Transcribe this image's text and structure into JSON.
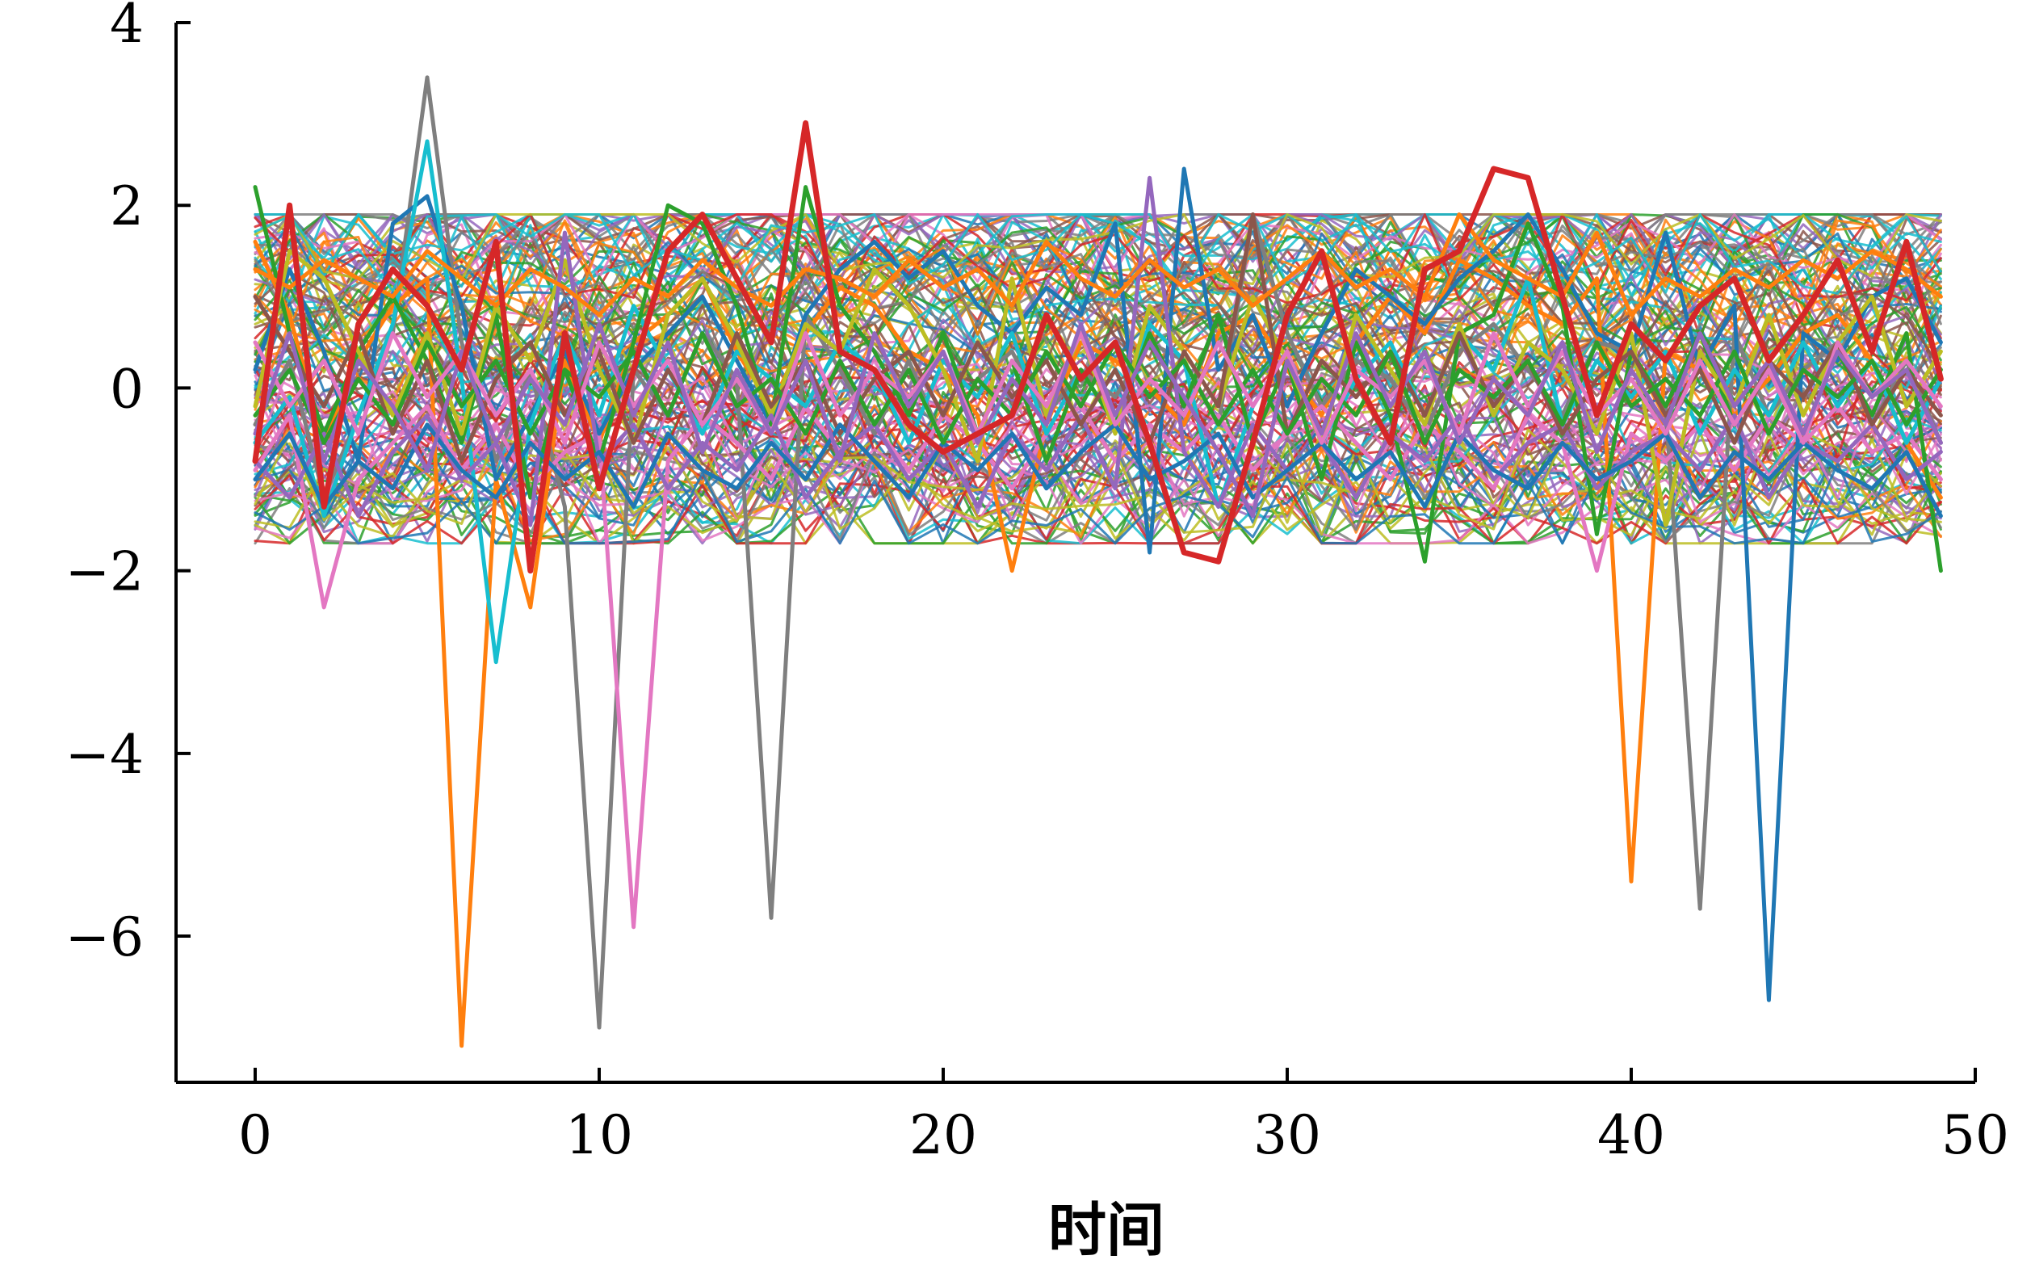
{
  "chart_data": {
    "type": "line",
    "title": "",
    "xlabel": "时间",
    "ylabel": "",
    "xlim": [
      -2.3,
      50
    ],
    "ylim": [
      -7.6,
      4
    ],
    "xticks": [
      0,
      10,
      20,
      30,
      40,
      50
    ],
    "yticks": [
      -6,
      -4,
      -2,
      0,
      2,
      4
    ],
    "ytick_labels": [
      "−6",
      "−4",
      "−2",
      "0",
      "2",
      "4"
    ],
    "grid": false,
    "legend": "none",
    "palette": [
      "#1f77b4",
      "#ff7f0e",
      "#2ca02c",
      "#d62728",
      "#9467bd",
      "#8c564b",
      "#e377c2",
      "#7f7f7f",
      "#bcbd22",
      "#17becf"
    ],
    "x": [
      0,
      1,
      2,
      3,
      4,
      5,
      6,
      7,
      8,
      9,
      10,
      11,
      12,
      13,
      14,
      15,
      16,
      17,
      18,
      19,
      20,
      21,
      22,
      23,
      24,
      25,
      26,
      27,
      28,
      29,
      30,
      31,
      32,
      33,
      34,
      35,
      36,
      37,
      38,
      39,
      40,
      41,
      42,
      43,
      44,
      45,
      46,
      47,
      48,
      49
    ],
    "series": [
      {
        "color": "#ff7f0e",
        "values": [
          1.6,
          0.8,
          -0.6,
          0.3,
          0.9,
          1.2,
          -7.2,
          -1.0,
          -2.4,
          0.3,
          -0.6,
          0.5,
          0.8,
          1.2,
          0.4,
          -0.2,
          0.6,
          1.1,
          0.9,
          0.4,
          0.2,
          -0.3,
          -2.0,
          -0.4,
          0.5,
          0.3,
          0.0,
          -0.4,
          0.6,
          0.8,
          0.2,
          -0.3,
          0.5,
          1.0,
          0.6,
          1.4,
          1.2,
          0.9,
          0.7,
          1.2,
          -5.4,
          0.4,
          0.2,
          -0.3,
          0.1,
          0.6,
          0.8,
          0.3,
          -0.6,
          -1.2
        ]
      },
      {
        "color": "#7f7f7f",
        "values": [
          -0.4,
          0.3,
          -1.2,
          -0.3,
          0.6,
          3.4,
          0.5,
          -0.8,
          0.2,
          -1.3,
          -7.0,
          0.2,
          -0.3,
          0.6,
          0.1,
          -5.8,
          0.8,
          0.2,
          -0.5,
          0.3,
          -0.6,
          0.1,
          0.4,
          -0.3,
          0.2,
          -0.1,
          0.5,
          0.3,
          -0.4,
          1.9,
          0.6,
          -0.2,
          0.3,
          0.1,
          -0.5,
          0.4,
          0.7,
          0.2,
          -0.3,
          0.5,
          0.4,
          -0.2,
          -5.7,
          0.6,
          -0.3,
          0.2,
          0.5,
          -0.4,
          0.3,
          -0.6
        ]
      },
      {
        "color": "#e377c2",
        "values": [
          -0.9,
          -0.3,
          -2.4,
          -1.0,
          -0.6,
          -0.2,
          -0.9,
          -0.4,
          -1.1,
          -0.7,
          -0.5,
          -5.9,
          -0.8,
          -0.3,
          -0.6,
          -1.0,
          -0.2,
          -0.7,
          -0.4,
          -0.9,
          -0.3,
          -0.6,
          -1.1,
          -0.5,
          -0.2,
          -0.8,
          -0.4,
          -0.7,
          -0.3,
          -0.9,
          -0.5,
          -0.2,
          -0.6,
          -1.0,
          -0.4,
          -0.7,
          -1.1,
          -0.3,
          -0.6,
          -2.0,
          -0.5,
          -0.8,
          -0.4,
          -0.9,
          -0.3,
          -0.6,
          -0.2,
          -0.7,
          -0.5,
          -1.0
        ]
      },
      {
        "color": "#1f77b4",
        "values": [
          0.2,
          1.3,
          0.4,
          -0.8,
          1.8,
          2.1,
          0.9,
          -1.0,
          -0.3,
          0.4,
          -0.5,
          0.2,
          0.6,
          1.0,
          0.3,
          -0.4,
          0.8,
          1.3,
          1.6,
          1.2,
          1.5,
          0.9,
          0.6,
          1.1,
          0.8,
          1.8,
          -1.8,
          2.4,
          0.2,
          0.8,
          -0.2,
          0.6,
          1.3,
          1.0,
          0.7,
          1.2,
          1.5,
          1.9,
          1.3,
          0.6,
          0.4,
          1.7,
          0.2,
          0.9,
          -6.7,
          0.6,
          0.3,
          1.0,
          1.2,
          0.5
        ]
      },
      {
        "color": "#17becf",
        "values": [
          -0.6,
          -0.1,
          -1.4,
          -0.3,
          0.7,
          2.7,
          0.1,
          -3.0,
          -0.4,
          0.6,
          -0.3,
          0.9,
          0.2,
          -0.5,
          0.4,
          0.1,
          -0.2,
          0.5,
          0.2,
          -0.6,
          0.3,
          -0.1,
          0.6,
          -0.5,
          0.2,
          -0.4,
          0.7,
          0.3,
          -1.3,
          -0.2,
          0.4,
          -0.6,
          0.1,
          0.5,
          -0.3,
          0.6,
          0.2,
          1.2,
          -0.4,
          0.3,
          -0.1,
          0.4,
          -0.5,
          0.2,
          -0.3,
          0.5,
          -0.2,
          0.3,
          -0.6,
          0.1
        ]
      },
      {
        "color": "#2ca02c",
        "values": [
          2.2,
          0.6,
          -0.5,
          0.4,
          1.0,
          0.3,
          -0.6,
          0.8,
          -1.2,
          0.2,
          -0.8,
          0.5,
          2.0,
          1.8,
          0.9,
          -0.4,
          2.2,
          0.9,
          0.4,
          -0.3,
          0.6,
          -0.5,
          0.3,
          -0.8,
          0.2,
          -0.4,
          0.6,
          -0.2,
          0.8,
          -0.6,
          0.3,
          -1.0,
          0.5,
          -0.3,
          -1.9,
          0.6,
          0.8,
          1.8,
          0.9,
          -1.6,
          0.4,
          -0.2,
          0.6,
          -0.4,
          0.2,
          -0.5,
          0.4,
          -0.3,
          0.6,
          -2.0
        ]
      },
      {
        "color": "#bcbd22",
        "values": [
          -0.2,
          1.5,
          1.2,
          0.4,
          -0.3,
          0.6,
          -0.5,
          0.9,
          0.3,
          1.4,
          0.2,
          -0.6,
          0.8,
          1.2,
          0.5,
          -0.3,
          0.7,
          0.4,
          1.3,
          0.9,
          0.2,
          -0.8,
          1.2,
          -0.3,
          0.6,
          -0.5,
          0.9,
          0.4,
          -0.2,
          1.0,
          0.3,
          -0.6,
          0.8,
          0.2,
          -0.4,
          0.7,
          -0.3,
          0.5,
          0.2,
          -0.5,
          0.6,
          -1.5,
          0.4,
          -0.2,
          0.8,
          -0.3,
          0.5,
          1.0,
          -0.2,
          0.4
        ]
      },
      {
        "color": "#9467bd",
        "values": [
          -0.8,
          -1.2,
          -0.5,
          -1.4,
          -0.7,
          -0.3,
          -1.0,
          -0.6,
          -1.5,
          1.7,
          -0.8,
          -0.4,
          -1.1,
          -0.6,
          -0.9,
          -0.3,
          -1.2,
          -0.7,
          -0.4,
          -1.0,
          -0.6,
          -1.3,
          -0.5,
          -0.9,
          -0.3,
          -1.1,
          2.3,
          -0.7,
          -1.3,
          -0.4,
          -0.9,
          -0.6,
          -1.2,
          -0.5,
          -0.8,
          -0.3,
          -1.0,
          -0.6,
          -0.4,
          -1.1,
          -0.7,
          -0.5,
          -0.9,
          -0.3,
          -1.2,
          -0.6,
          -0.8,
          -0.4,
          -1.0,
          -0.7
        ]
      },
      {
        "color": "#8c564b",
        "values": [
          1.0,
          0.4,
          -0.2,
          0.6,
          -0.5,
          0.3,
          -0.8,
          0.1,
          0.5,
          -0.3,
          0.4,
          -0.6,
          0.2,
          -0.4,
          0.6,
          -0.2,
          0.3,
          -0.5,
          0.1,
          0.4,
          -0.3,
          0.5,
          -0.1,
          0.3,
          -0.4,
          0.2,
          -0.6,
          0.4,
          -0.2,
          1.9,
          -0.5,
          0.3,
          -0.1,
          0.4,
          -0.3,
          0.6,
          -0.2,
          0.3,
          -0.5,
          0.1,
          0.4,
          -0.3,
          0.2,
          -0.6,
          0.3,
          -0.1,
          0.5,
          -0.4,
          0.2,
          -0.3
        ]
      },
      {
        "color": "#1f77b4",
        "values": [
          -1.0,
          -0.5,
          -1.3,
          -0.8,
          -1.1,
          -0.4,
          -0.9,
          -1.2,
          -0.6,
          -1.0,
          -0.7,
          -1.3,
          -0.5,
          -0.9,
          -1.1,
          -0.6,
          -1.0,
          -0.4,
          -0.8,
          -1.2,
          -0.6,
          -0.9,
          -0.5,
          -1.1,
          -0.7,
          -0.4,
          -1.0,
          -0.8,
          -0.5,
          -1.2,
          -0.9,
          -0.6,
          -1.0,
          -0.7,
          -1.3,
          -0.5,
          -0.9,
          -1.1,
          -0.6,
          -1.0,
          -0.8,
          -0.5,
          -1.2,
          -0.7,
          -1.0,
          -0.6,
          -0.9,
          -1.1,
          -0.7,
          -1.4
        ]
      },
      {
        "color": "#ff7f0e",
        "values": [
          1.3,
          1.1,
          1.4,
          1.2,
          1.0,
          1.5,
          1.2,
          0.9,
          1.3,
          1.1,
          0.8,
          1.2,
          1.0,
          1.4,
          1.1,
          0.9,
          1.3,
          1.2,
          1.0,
          1.4,
          1.1,
          1.3,
          0.9,
          1.6,
          1.2,
          1.0,
          1.4,
          1.1,
          1.3,
          0.9,
          1.2,
          1.5,
          1.1,
          1.3,
          1.0,
          1.9,
          1.4,
          1.2,
          1.0,
          1.7,
          0.8,
          1.2,
          1.0,
          1.3,
          1.1,
          1.4,
          1.2,
          1.5,
          1.3,
          1.0
        ]
      },
      {
        "color": "#2ca02c",
        "values": [
          -0.3,
          0.2,
          -0.6,
          0.1,
          -0.4,
          0.5,
          -0.2,
          0.3,
          -0.5,
          0.2,
          -0.1,
          0.4,
          -0.3,
          0.6,
          -0.2,
          0.1,
          -0.5,
          0.3,
          -0.4,
          0.2,
          -0.6,
          0.1,
          -0.3,
          0.4,
          -0.2,
          0.5,
          -0.1,
          0.3,
          -0.4,
          0.2,
          -0.5,
          0.1,
          -0.3,
          0.4,
          -0.6,
          0.2,
          -0.1,
          0.3,
          -0.4,
          0.5,
          -0.2,
          0.1,
          -0.3,
          0.4,
          -0.5,
          0.2,
          -0.1,
          0.3,
          -0.4,
          0.2
        ]
      },
      {
        "color": "#e377c2",
        "values": [
          0.5,
          -0.2,
          0.3,
          -0.5,
          0.6,
          -0.1,
          0.4,
          -0.3,
          0.2,
          -0.6,
          0.5,
          -0.2,
          0.3,
          -0.4,
          0.1,
          -0.5,
          0.6,
          -0.3,
          0.2,
          -0.1,
          0.4,
          -0.5,
          0.3,
          -0.2,
          0.6,
          -0.4,
          0.1,
          -0.3,
          0.5,
          -0.2,
          0.4,
          -0.6,
          0.2,
          -0.1,
          0.3,
          -0.5,
          0.6,
          -0.2,
          0.4,
          -0.3,
          0.1,
          -0.5,
          0.3,
          -0.4,
          0.2,
          -0.6,
          0.5,
          -0.1,
          0.3,
          -0.2
        ]
      },
      {
        "color": "#9467bd",
        "values": [
          -0.5,
          0.6,
          -0.8,
          0.3,
          -0.2,
          -0.9,
          0.4,
          -0.6,
          0.1,
          -0.4,
          0.7,
          -0.3,
          0.5,
          -0.7,
          0.2,
          -0.5,
          0.3,
          -0.8,
          0.6,
          -0.2,
          0.4,
          -0.6,
          0.1,
          -0.4,
          0.7,
          -0.3,
          0.5,
          -0.1,
          -0.7,
          -1.4,
          0.3,
          -0.5,
          0.6,
          -0.2,
          0.4,
          -0.6,
          0.1,
          -0.3,
          0.5,
          -0.7,
          0.2,
          -0.4,
          0.6,
          -0.2,
          0.3,
          -0.5,
          0.4,
          -0.1,
          0.2,
          -0.6
        ]
      },
      {
        "color": "#d62728",
        "values": [
          -0.8,
          2.0,
          -1.3,
          0.7,
          1.3,
          0.9,
          0.2,
          1.6,
          -2.0,
          0.6,
          -1.1,
          0.2,
          1.5,
          1.9,
          1.2,
          0.5,
          2.9,
          0.4,
          0.2,
          -0.4,
          -0.7,
          -0.5,
          -0.3,
          0.8,
          0.1,
          0.5,
          -0.6,
          -1.8,
          -1.9,
          -0.6,
          0.8,
          1.5,
          0.1,
          -0.6,
          1.3,
          1.5,
          2.4,
          2.3,
          1.0,
          -0.3,
          0.7,
          0.3,
          0.9,
          1.2,
          0.3,
          0.8,
          1.4,
          0.4,
          1.6,
          0.1
        ]
      }
    ]
  }
}
